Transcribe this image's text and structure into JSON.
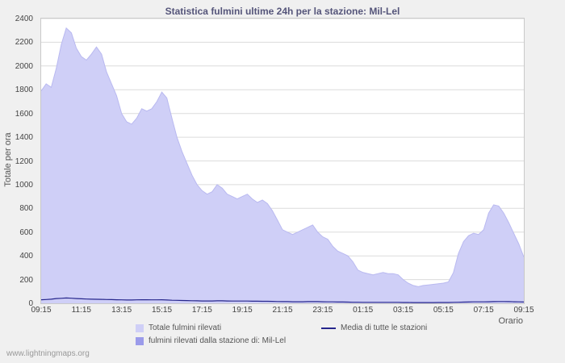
{
  "page": {
    "watermark": "www.lightningmaps.org",
    "background": "#f0f0f0"
  },
  "chart_data": {
    "type": "area",
    "title": "Statistica fulmini ultime 24h per la stazione: Mil-Lel",
    "xlabel": "Orario",
    "ylabel": "Totale per ora",
    "ylim": [
      0,
      2400
    ],
    "ytick_step": 200,
    "grid": "horizontal",
    "legend_position": "bottom",
    "points_interval_minutes": 15,
    "x_tick_every": 8,
    "x_tick_labels": [
      "09:15",
      "11:15",
      "13:15",
      "15:15",
      "17:15",
      "19:15",
      "21:15",
      "23:15",
      "01:15",
      "03:15",
      "05:15",
      "07:15",
      "09:15"
    ],
    "series": [
      {
        "name": "Totale fulmini rilevati",
        "type": "area",
        "color": "#cfcff7",
        "edge": "#b9b9f0",
        "values": [
          1790,
          1850,
          1820,
          1980,
          2180,
          2320,
          2280,
          2150,
          2080,
          2050,
          2100,
          2160,
          2100,
          1950,
          1850,
          1750,
          1600,
          1530,
          1510,
          1560,
          1640,
          1620,
          1640,
          1700,
          1780,
          1730,
          1560,
          1400,
          1280,
          1180,
          1080,
          1000,
          950,
          920,
          940,
          1000,
          970,
          920,
          900,
          880,
          900,
          920,
          880,
          850,
          870,
          840,
          780,
          700,
          620,
          600,
          580,
          600,
          620,
          640,
          660,
          600,
          560,
          540,
          480,
          440,
          420,
          400,
          350,
          280,
          260,
          250,
          240,
          250,
          260,
          250,
          250,
          240,
          200,
          170,
          150,
          140,
          150,
          155,
          160,
          165,
          170,
          180,
          260,
          420,
          520,
          570,
          590,
          580,
          620,
          760,
          830,
          820,
          760,
          680,
          590,
          500,
          390
        ]
      },
      {
        "name": "fulmini rilevati dalla stazione di: Mil-Lel",
        "type": "area",
        "color": "#9b9bea",
        "edge": "#9b9bea",
        "values": [
          0,
          0,
          0,
          0,
          0,
          0,
          0,
          0,
          0,
          0,
          0,
          0,
          0,
          0,
          0,
          0,
          0,
          0,
          0,
          0,
          0,
          0,
          0,
          0,
          0,
          0,
          0,
          0,
          0,
          0,
          0,
          0,
          0,
          0,
          0,
          0,
          0,
          0,
          0,
          0,
          0,
          0,
          0,
          0,
          0,
          0,
          0,
          0,
          0,
          0,
          0,
          0,
          0,
          0,
          0,
          0,
          0,
          0,
          0,
          0,
          0,
          0,
          0,
          0,
          0,
          0,
          0,
          0,
          0,
          0,
          0,
          0,
          0,
          0,
          0,
          0,
          0,
          0,
          0,
          0,
          0,
          0,
          0,
          0,
          0,
          0,
          0,
          0,
          0,
          0,
          0,
          0,
          0,
          0,
          0,
          0,
          0
        ]
      },
      {
        "name": "Media di tutte le stazioni",
        "type": "line",
        "color": "#26268c",
        "values": [
          30,
          32,
          35,
          40,
          42,
          45,
          43,
          40,
          38,
          36,
          35,
          34,
          33,
          32,
          31,
          30,
          29,
          28,
          28,
          29,
          30,
          30,
          29,
          29,
          30,
          28,
          26,
          25,
          24,
          23,
          22,
          21,
          20,
          20,
          20,
          21,
          21,
          20,
          19,
          19,
          19,
          19,
          18,
          18,
          17,
          17,
          16,
          15,
          14,
          14,
          13,
          13,
          13,
          14,
          14,
          14,
          13,
          12,
          12,
          11,
          11,
          10,
          9,
          9,
          8,
          8,
          8,
          8,
          8,
          8,
          8,
          8,
          7,
          7,
          6,
          6,
          6,
          6,
          6,
          7,
          7,
          7,
          8,
          9,
          10,
          11,
          12,
          12,
          12,
          13,
          14,
          15,
          15,
          14,
          13,
          12,
          11
        ]
      }
    ]
  }
}
